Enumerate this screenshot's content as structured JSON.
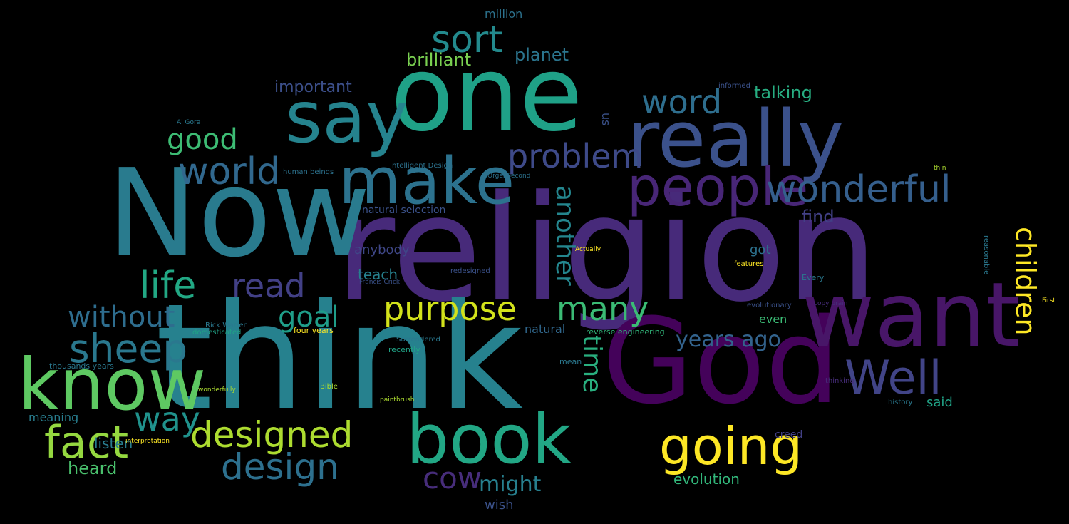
{
  "palette": {
    "background": "#000000",
    "teal": "#26818e",
    "deep_purple": "#44025a",
    "purple": "#472d7b",
    "indigo": "#3b528b",
    "blue": "#2c728e",
    "green_teal": "#21a585",
    "green": "#5ec962",
    "lime": "#addc30",
    "yellow": "#fde725",
    "dark_violet": "#440154"
  },
  "words": [
    {
      "text": "religion",
      "weight": 1.0,
      "color": "#472a7a",
      "vertical": false
    },
    {
      "text": "think",
      "weight": 0.97,
      "color": "#26818e",
      "vertical": false
    },
    {
      "text": "Now",
      "weight": 0.88,
      "color": "#297b8e",
      "vertical": false
    },
    {
      "text": "God",
      "weight": 0.78,
      "color": "#44025a",
      "vertical": false
    },
    {
      "text": "one",
      "weight": 0.7,
      "color": "#1fa187",
      "vertical": false
    },
    {
      "text": "want",
      "weight": 0.62,
      "color": "#481668",
      "vertical": false
    },
    {
      "text": "really",
      "weight": 0.55,
      "color": "#3b518b",
      "vertical": false
    },
    {
      "text": "say",
      "weight": 0.5,
      "color": "#25838e",
      "vertical": false
    },
    {
      "text": "know",
      "weight": 0.5,
      "color": "#5ec962",
      "vertical": false
    },
    {
      "text": "book",
      "weight": 0.48,
      "color": "#22a785",
      "vertical": false
    },
    {
      "text": "make",
      "weight": 0.46,
      "color": "#2c728e",
      "vertical": false
    },
    {
      "text": "people",
      "weight": 0.38,
      "color": "#482677",
      "vertical": false
    },
    {
      "text": "going",
      "weight": 0.36,
      "color": "#fde725",
      "vertical": false
    },
    {
      "text": "Well",
      "weight": 0.34,
      "color": "#414487",
      "vertical": false
    },
    {
      "text": "wonderful",
      "weight": 0.33,
      "color": "#355f8d",
      "vertical": false
    },
    {
      "text": "fact",
      "weight": 0.31,
      "color": "#95d840",
      "vertical": false
    },
    {
      "text": "sheep",
      "weight": 0.28,
      "color": "#2a788e",
      "vertical": false
    },
    {
      "text": "life",
      "weight": 0.26,
      "color": "#22a884",
      "vertical": false
    },
    {
      "text": "design",
      "weight": 0.26,
      "color": "#2d708e",
      "vertical": false
    },
    {
      "text": "designed",
      "weight": 0.26,
      "color": "#addc30",
      "vertical": false
    },
    {
      "text": "world",
      "weight": 0.27,
      "color": "#31688e",
      "vertical": false
    },
    {
      "text": "sort",
      "weight": 0.27,
      "color": "#238a8d",
      "vertical": false
    },
    {
      "text": "problem",
      "weight": 0.25,
      "color": "#3e4a89",
      "vertical": false
    },
    {
      "text": "purpose",
      "weight": 0.26,
      "color": "#d2e21b",
      "vertical": false
    },
    {
      "text": "word",
      "weight": 0.23,
      "color": "#2e6e8e",
      "vertical": false
    },
    {
      "text": "read",
      "weight": 0.24,
      "color": "#424086",
      "vertical": false
    },
    {
      "text": "way",
      "weight": 0.24,
      "color": "#20928c",
      "vertical": false
    },
    {
      "text": "cow",
      "weight": 0.23,
      "color": "#472d7b",
      "vertical": false
    },
    {
      "text": "many",
      "weight": 0.24,
      "color": "#3bbb75",
      "vertical": false
    },
    {
      "text": "good",
      "weight": 0.22,
      "color": "#3dbc74",
      "vertical": false
    },
    {
      "text": "without",
      "weight": 0.22,
      "color": "#2e6d8e",
      "vertical": false
    },
    {
      "text": "goal",
      "weight": 0.22,
      "color": "#1f9e89",
      "vertical": false
    },
    {
      "text": "time",
      "weight": 0.21,
      "color": "#29af7f",
      "vertical": true
    },
    {
      "text": "another",
      "weight": 0.2,
      "color": "#24868e",
      "vertical": true
    },
    {
      "text": "children",
      "weight": 0.22,
      "color": "#fde725",
      "vertical": true
    },
    {
      "text": "might",
      "weight": 0.18,
      "color": "#277f8e",
      "vertical": false
    },
    {
      "text": "years ago",
      "weight": 0.18,
      "color": "#33638d",
      "vertical": false
    },
    {
      "text": "heard",
      "weight": 0.15,
      "color": "#4ac16d",
      "vertical": false
    },
    {
      "text": "planet",
      "weight": 0.15,
      "color": "#2b758e",
      "vertical": false
    },
    {
      "text": "brilliant",
      "weight": 0.15,
      "color": "#7ad151",
      "vertical": false
    },
    {
      "text": "important",
      "weight": 0.14,
      "color": "#3c4f8a",
      "vertical": false
    },
    {
      "text": "talking",
      "weight": 0.14,
      "color": "#27ad81",
      "vertical": false
    },
    {
      "text": "evolution",
      "weight": 0.12,
      "color": "#32b67a",
      "vertical": false
    },
    {
      "text": "teach",
      "weight": 0.12,
      "color": "#26818e",
      "vertical": false
    },
    {
      "text": "find",
      "weight": 0.12,
      "color": "#424086",
      "vertical": false
    },
    {
      "text": "listen",
      "weight": 0.12,
      "color": "#287c8e",
      "vertical": false
    },
    {
      "text": "wish",
      "weight": 0.11,
      "color": "#3b528b",
      "vertical": false
    },
    {
      "text": "said",
      "weight": 0.11,
      "color": "#20a386",
      "vertical": false
    },
    {
      "text": "anybody",
      "weight": 0.11,
      "color": "#3f4788",
      "vertical": false
    },
    {
      "text": "got",
      "weight": 0.11,
      "color": "#2c728e",
      "vertical": false
    },
    {
      "text": "natural",
      "weight": 0.11,
      "color": "#31688e",
      "vertical": false
    },
    {
      "text": "natural selection",
      "weight": 0.1,
      "color": "#3b528b",
      "vertical": false
    },
    {
      "text": "meaning",
      "weight": 0.1,
      "color": "#287d8e",
      "vertical": false
    },
    {
      "text": "million",
      "weight": 0.1,
      "color": "#2c728e",
      "vertical": false
    },
    {
      "text": "creed",
      "weight": 0.1,
      "color": "#424086",
      "vertical": false
    },
    {
      "text": "even",
      "weight": 0.1,
      "color": "#3bbb75",
      "vertical": false
    },
    {
      "text": "Intelligent Design",
      "weight": 0.07,
      "color": "#2c728e",
      "vertical": false
    },
    {
      "text": "human beings",
      "weight": 0.07,
      "color": "#2c728e",
      "vertical": false
    },
    {
      "text": "four years",
      "weight": 0.08,
      "color": "#fde725",
      "vertical": false
    },
    {
      "text": "thousands years",
      "weight": 0.08,
      "color": "#2a788e",
      "vertical": false
    },
    {
      "text": "reverse engineering",
      "weight": 0.08,
      "color": "#32b67a",
      "vertical": false
    },
    {
      "text": "Surrendered",
      "weight": 0.07,
      "color": "#2a788e",
      "vertical": false
    },
    {
      "text": "domesticated",
      "weight": 0.07,
      "color": "#20a386",
      "vertical": false
    },
    {
      "text": "Rick Warren",
      "weight": 0.07,
      "color": "#2a788e",
      "vertical": false
    },
    {
      "text": "wonderfully",
      "weight": 0.06,
      "color": "#addc30",
      "vertical": false
    },
    {
      "text": "Orgel Second",
      "weight": 0.06,
      "color": "#2c728e",
      "vertical": false
    },
    {
      "text": "Al Gore",
      "weight": 0.06,
      "color": "#2a788e",
      "vertical": false
    },
    {
      "text": "Francis Crick",
      "weight": 0.06,
      "color": "#3b528b",
      "vertical": false
    },
    {
      "text": "redesigned",
      "weight": 0.06,
      "color": "#3b528b",
      "vertical": false
    },
    {
      "text": "recently",
      "weight": 0.07,
      "color": "#20a386",
      "vertical": false
    },
    {
      "text": "evolutionary",
      "weight": 0.06,
      "color": "#3b528b",
      "vertical": false
    },
    {
      "text": "Every",
      "weight": 0.07,
      "color": "#2a788e",
      "vertical": false
    },
    {
      "text": "interpretation",
      "weight": 0.06,
      "color": "#fde725",
      "vertical": false
    },
    {
      "text": "paintbrush",
      "weight": 0.06,
      "color": "#addc30",
      "vertical": false
    },
    {
      "text": "Bible",
      "weight": 0.07,
      "color": "#addc30",
      "vertical": false
    },
    {
      "text": "history",
      "weight": 0.07,
      "color": "#2a788e",
      "vertical": false
    },
    {
      "text": "informed",
      "weight": 0.07,
      "color": "#3b528b",
      "vertical": false
    },
    {
      "text": "thin",
      "weight": 0.06,
      "color": "#addc30",
      "vertical": false
    },
    {
      "text": "mean",
      "weight": 0.07,
      "color": "#2a788e",
      "vertical": false
    },
    {
      "text": "features",
      "weight": 0.07,
      "color": "#fde725",
      "vertical": false
    },
    {
      "text": "Actually",
      "weight": 0.06,
      "color": "#fde725",
      "vertical": false
    },
    {
      "text": "us",
      "weight": 0.09,
      "color": "#3b528b",
      "vertical": true
    },
    {
      "text": "copy brain",
      "weight": 0.06,
      "color": "#472d7b",
      "vertical": false
    },
    {
      "text": "First",
      "weight": 0.06,
      "color": "#fde725",
      "vertical": false
    },
    {
      "text": "thinking",
      "weight": 0.06,
      "color": "#472d7b",
      "vertical": false
    },
    {
      "text": "reasonable",
      "weight": 0.06,
      "color": "#2a788e",
      "vertical": true
    }
  ]
}
